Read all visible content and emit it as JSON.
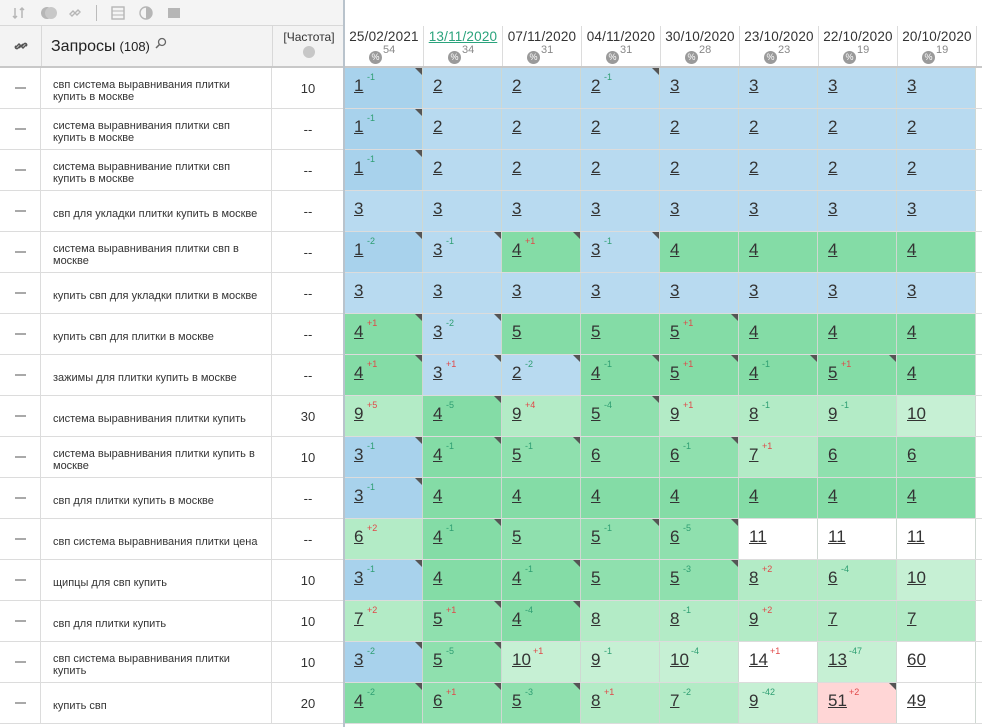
{
  "toolbar": {
    "icons": [
      "sort-icon",
      "toggle-icon",
      "link-icon",
      "table-icon",
      "contrast-icon",
      "image-icon"
    ]
  },
  "header": {
    "queries_label": "Запросы",
    "queries_count": "(108)",
    "freq_label": "[Частота]",
    "dates": [
      {
        "date": "25/02/2021",
        "count": "54"
      },
      {
        "date": "13/11/2020",
        "count": "34"
      },
      {
        "date": "07/11/2020",
        "count": "31"
      },
      {
        "date": "04/11/2020",
        "count": "31"
      },
      {
        "date": "30/10/2020",
        "count": "28"
      },
      {
        "date": "23/10/2020",
        "count": "23"
      },
      {
        "date": "22/10/2020",
        "count": "19"
      },
      {
        "date": "20/10/2020",
        "count": "19"
      }
    ],
    "pct_symbol": "%"
  },
  "rows": [
    {
      "query": "свп система выравнивания плитки купить в москве",
      "freq": "10",
      "cells": [
        [
          "1",
          "-1",
          "b1",
          true
        ],
        [
          "2",
          "",
          "bb",
          false
        ],
        [
          "2",
          "",
          "bb",
          false
        ],
        [
          "2",
          "-1",
          "bb",
          true
        ],
        [
          "3",
          "",
          "bb",
          false
        ],
        [
          "3",
          "",
          "bb",
          false
        ],
        [
          "3",
          "",
          "bb",
          false
        ],
        [
          "3",
          "",
          "bb",
          false
        ]
      ]
    },
    {
      "query": "система выравнивания плитки свп купить в москве",
      "freq": "--",
      "cells": [
        [
          "1",
          "-1",
          "b1",
          true
        ],
        [
          "2",
          "",
          "bb",
          false
        ],
        [
          "2",
          "",
          "bb",
          false
        ],
        [
          "2",
          "",
          "bb",
          false
        ],
        [
          "2",
          "",
          "bb",
          false
        ],
        [
          "2",
          "",
          "bb",
          false
        ],
        [
          "2",
          "",
          "bb",
          false
        ],
        [
          "2",
          "",
          "bb",
          false
        ]
      ]
    },
    {
      "query": "система выравнивание плитки свп купить в москве",
      "freq": "--",
      "cells": [
        [
          "1",
          "-1",
          "b1",
          true
        ],
        [
          "2",
          "",
          "bb",
          false
        ],
        [
          "2",
          "",
          "bb",
          false
        ],
        [
          "2",
          "",
          "bb",
          false
        ],
        [
          "2",
          "",
          "bb",
          false
        ],
        [
          "2",
          "",
          "bb",
          false
        ],
        [
          "2",
          "",
          "bb",
          false
        ],
        [
          "2",
          "",
          "bb",
          false
        ]
      ]
    },
    {
      "query": "свп для укладки плитки купить в москве",
      "freq": "--",
      "cells": [
        [
          "3",
          "",
          "bb",
          false
        ],
        [
          "3",
          "",
          "bb",
          false
        ],
        [
          "3",
          "",
          "bb",
          false
        ],
        [
          "3",
          "",
          "bb",
          false
        ],
        [
          "3",
          "",
          "bb",
          false
        ],
        [
          "3",
          "",
          "bb",
          false
        ],
        [
          "3",
          "",
          "bb",
          false
        ],
        [
          "3",
          "",
          "bb",
          false
        ]
      ]
    },
    {
      "query": "система выравнивания плитки свп в москве",
      "freq": "--",
      "cells": [
        [
          "1",
          "-2",
          "b1",
          true
        ],
        [
          "3",
          "-1",
          "bb",
          true
        ],
        [
          "4",
          "+1",
          "g1",
          true
        ],
        [
          "3",
          "-1",
          "bb",
          true
        ],
        [
          "4",
          "",
          "g1",
          false
        ],
        [
          "4",
          "",
          "g1",
          false
        ],
        [
          "4",
          "",
          "g1",
          false
        ],
        [
          "4",
          "",
          "g1",
          false
        ]
      ]
    },
    {
      "query": "купить свп для укладки плитки в москве",
      "freq": "--",
      "cells": [
        [
          "3",
          "",
          "bb",
          false
        ],
        [
          "3",
          "",
          "bb",
          false
        ],
        [
          "3",
          "",
          "bb",
          false
        ],
        [
          "3",
          "",
          "bb",
          false
        ],
        [
          "3",
          "",
          "bb",
          false
        ],
        [
          "3",
          "",
          "bb",
          false
        ],
        [
          "3",
          "",
          "bb",
          false
        ],
        [
          "3",
          "",
          "bb",
          false
        ]
      ]
    },
    {
      "query": "купить свп для плитки в москве",
      "freq": "--",
      "cells": [
        [
          "4",
          "+1",
          "g1",
          true
        ],
        [
          "3",
          "-2",
          "bb",
          true
        ],
        [
          "5",
          "",
          "g1",
          false
        ],
        [
          "5",
          "",
          "g1",
          false
        ],
        [
          "5",
          "+1",
          "g1",
          true
        ],
        [
          "4",
          "",
          "g1",
          false
        ],
        [
          "4",
          "",
          "g1",
          false
        ],
        [
          "4",
          "",
          "g1",
          false
        ]
      ]
    },
    {
      "query": "зажимы для плитки купить в москве",
      "freq": "--",
      "cells": [
        [
          "4",
          "+1",
          "g1",
          true
        ],
        [
          "3",
          "+1",
          "bb",
          true
        ],
        [
          "2",
          "-2",
          "bb",
          true
        ],
        [
          "4",
          "-1",
          "g1",
          true
        ],
        [
          "5",
          "+1",
          "g1",
          true
        ],
        [
          "4",
          "-1",
          "g1",
          true
        ],
        [
          "5",
          "+1",
          "g1",
          true
        ],
        [
          "4",
          "",
          "g1",
          false
        ]
      ]
    },
    {
      "query": "система выравнивания плитки купить",
      "freq": "30",
      "cells": [
        [
          "9",
          "+5",
          "g3",
          false
        ],
        [
          "4",
          "-5",
          "g1",
          true
        ],
        [
          "9",
          "+4",
          "g3",
          false
        ],
        [
          "5",
          "-4",
          "g2",
          true
        ],
        [
          "9",
          "+1",
          "g3",
          false
        ],
        [
          "8",
          "-1",
          "g3",
          false
        ],
        [
          "9",
          "-1",
          "g3",
          false
        ],
        [
          "10",
          "",
          "g4",
          false
        ]
      ]
    },
    {
      "query": "система выравнивания плитки купить в москве",
      "freq": "10",
      "cells": [
        [
          "3",
          "-1",
          "b1",
          true
        ],
        [
          "4",
          "-1",
          "g1",
          true
        ],
        [
          "5",
          "-1",
          "g2",
          true
        ],
        [
          "6",
          "",
          "g2",
          false
        ],
        [
          "6",
          "-1",
          "g2",
          true
        ],
        [
          "7",
          "+1",
          "g3",
          false
        ],
        [
          "6",
          "",
          "g2",
          false
        ],
        [
          "6",
          "",
          "g2",
          false
        ]
      ]
    },
    {
      "query": "свп для плитки купить в москве",
      "freq": "--",
      "cells": [
        [
          "3",
          "-1",
          "b1",
          true
        ],
        [
          "4",
          "",
          "g1",
          false
        ],
        [
          "4",
          "",
          "g1",
          false
        ],
        [
          "4",
          "",
          "g1",
          false
        ],
        [
          "4",
          "",
          "g1",
          false
        ],
        [
          "4",
          "",
          "g1",
          false
        ],
        [
          "4",
          "",
          "g1",
          false
        ],
        [
          "4",
          "",
          "g1",
          false
        ]
      ]
    },
    {
      "query": "свп система выравнивания плитки цена",
      "freq": "--",
      "cells": [
        [
          "6",
          "+2",
          "g3",
          false
        ],
        [
          "4",
          "-1",
          "g1",
          true
        ],
        [
          "5",
          "",
          "g2",
          false
        ],
        [
          "5",
          "-1",
          "g2",
          true
        ],
        [
          "6",
          "-5",
          "g2",
          true
        ],
        [
          "11",
          "",
          "w",
          false
        ],
        [
          "11",
          "",
          "w",
          false
        ],
        [
          "11",
          "",
          "w",
          false
        ]
      ]
    },
    {
      "query": "щипцы для свп купить",
      "freq": "10",
      "cells": [
        [
          "3",
          "-1",
          "b1",
          true
        ],
        [
          "4",
          "",
          "g1",
          false
        ],
        [
          "4",
          "-1",
          "g1",
          true
        ],
        [
          "5",
          "",
          "g2",
          false
        ],
        [
          "5",
          "-3",
          "g2",
          true
        ],
        [
          "8",
          "+2",
          "g3",
          false
        ],
        [
          "6",
          "-4",
          "g3",
          false
        ],
        [
          "10",
          "",
          "g4",
          false
        ]
      ]
    },
    {
      "query": "свп для плитки купить",
      "freq": "10",
      "cells": [
        [
          "7",
          "+2",
          "g3",
          false
        ],
        [
          "5",
          "+1",
          "g2",
          true
        ],
        [
          "4",
          "-4",
          "g1",
          true
        ],
        [
          "8",
          "",
          "g3",
          false
        ],
        [
          "8",
          "-1",
          "g3",
          false
        ],
        [
          "9",
          "+2",
          "g3",
          false
        ],
        [
          "7",
          "",
          "g3",
          false
        ],
        [
          "7",
          "",
          "g3",
          false
        ]
      ]
    },
    {
      "query": "свп система выравнивания плитки купить",
      "freq": "10",
      "cells": [
        [
          "3",
          "-2",
          "b1",
          true
        ],
        [
          "5",
          "-5",
          "g2",
          true
        ],
        [
          "10",
          "+1",
          "g4",
          false
        ],
        [
          "9",
          "-1",
          "g4",
          false
        ],
        [
          "10",
          "-4",
          "g4",
          false
        ],
        [
          "14",
          "+1",
          "w",
          false
        ],
        [
          "13",
          "-47",
          "g4",
          false
        ],
        [
          "60",
          "",
          "w",
          false
        ]
      ]
    },
    {
      "query": "купить свп",
      "freq": "20",
      "cells": [
        [
          "4",
          "-2",
          "g1",
          true
        ],
        [
          "6",
          "+1",
          "g2",
          true
        ],
        [
          "5",
          "-3",
          "g2",
          true
        ],
        [
          "8",
          "+1",
          "g3",
          false
        ],
        [
          "7",
          "-2",
          "g3",
          false
        ],
        [
          "9",
          "-42",
          "g4",
          false
        ],
        [
          "51",
          "+2",
          "pk",
          true
        ],
        [
          "49",
          "",
          "w",
          false
        ]
      ]
    }
  ]
}
